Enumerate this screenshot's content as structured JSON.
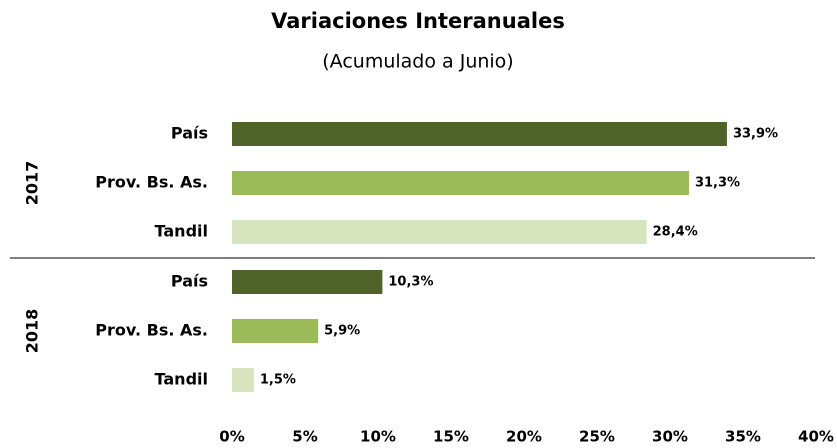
{
  "chart_data": {
    "type": "bar",
    "orientation": "horizontal",
    "title": "Variaciones Interanuales",
    "subtitle": "(Acumulado a Junio)",
    "colors": [
      "#4f6228",
      "#9bbb59",
      "#d7e4bd"
    ],
    "groups": [
      {
        "name": "2017",
        "categories": [
          "País",
          "Prov. Bs. As.",
          "Tandil"
        ],
        "values": [
          33.9,
          31.3,
          28.4
        ],
        "value_labels": [
          "33,9%",
          "31,3%",
          "28,4%"
        ]
      },
      {
        "name": "2018",
        "categories": [
          "País",
          "Prov. Bs. As.",
          "Tandil"
        ],
        "values": [
          10.3,
          5.9,
          1.5
        ],
        "value_labels": [
          "10,3%",
          "5,9%",
          "1,5%"
        ]
      }
    ],
    "xlim": [
      0,
      40
    ],
    "xticks": [
      {
        "value": 0,
        "label": "0%"
      },
      {
        "value": 5,
        "label": "5%"
      },
      {
        "value": 10,
        "label": "10%"
      },
      {
        "value": 15,
        "label": "15%"
      },
      {
        "value": 20,
        "label": "20%"
      },
      {
        "value": 25,
        "label": "25%"
      },
      {
        "value": 30,
        "label": "30%"
      },
      {
        "value": 35,
        "label": "35%"
      },
      {
        "value": 40,
        "label": "40%"
      }
    ],
    "grid": false
  }
}
